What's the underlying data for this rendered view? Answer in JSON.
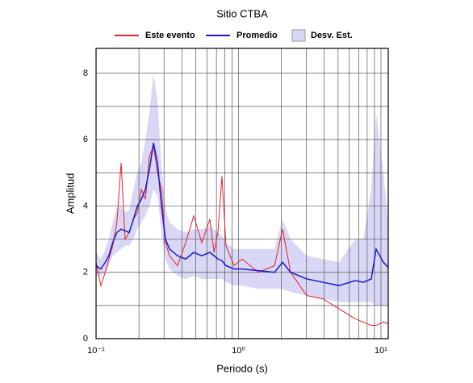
{
  "chart_data": {
    "type": "line",
    "title": "Sitio CTBA",
    "x_label": "Periodo (s)",
    "y_label": "Amplitud",
    "log_x": true,
    "grid": true,
    "xlim": [
      0.1,
      11.25
    ],
    "ylim": [
      0,
      8.75
    ],
    "xticks": [
      {
        "value": 0.1,
        "label": "10⁻¹"
      },
      {
        "value": 1,
        "label": "10⁰"
      },
      {
        "value": 10,
        "label": "10¹"
      }
    ],
    "xminor": [
      0.2,
      0.3,
      0.4,
      0.5,
      0.6,
      0.7,
      0.8,
      0.9,
      2,
      3,
      4,
      5,
      6,
      7,
      8,
      9
    ],
    "yticks": [
      0,
      2,
      4,
      6,
      8
    ],
    "yminor": [
      1,
      3,
      5,
      7
    ],
    "x": [
      0.1,
      0.108,
      0.116,
      0.123,
      0.131,
      0.14,
      0.15,
      0.16,
      0.171,
      0.183,
      0.195,
      0.208,
      0.222,
      0.237,
      0.253,
      0.27,
      0.288,
      0.307,
      0.328,
      0.373,
      0.426,
      0.485,
      0.552,
      0.63,
      0.673,
      0.717,
      0.765,
      0.817,
      0.931,
      1.06,
      1.38,
      1.79,
      2.04,
      2.32,
      3.01,
      3.91,
      5.08,
      6.59,
      7.51,
      8.55,
      9.25,
      10.4,
      11.25
    ],
    "series": [
      {
        "name": "Este evento",
        "color": "#e8202a",
        "values": [
          2.3,
          1.6,
          2.0,
          2.4,
          2.8,
          3.5,
          5.3,
          3.0,
          3.2,
          3.6,
          3.8,
          4.5,
          4.2,
          5.5,
          5.8,
          5.0,
          4.5,
          2.9,
          2.5,
          2.2,
          2.9,
          3.7,
          2.9,
          3.6,
          2.6,
          3.2,
          4.9,
          2.8,
          2.2,
          2.4,
          2.0,
          2.2,
          3.3,
          2.0,
          1.3,
          1.2,
          0.9,
          0.6,
          0.5,
          0.4,
          0.4,
          0.5,
          0.45
        ]
      },
      {
        "name": "Promedio",
        "color": "#1a1acc",
        "values": [
          2.2,
          2.1,
          2.3,
          2.5,
          2.9,
          3.2,
          3.3,
          3.25,
          3.2,
          3.6,
          4.0,
          4.2,
          4.5,
          5.1,
          5.9,
          5.3,
          4.0,
          3.0,
          2.7,
          2.5,
          2.4,
          2.6,
          2.5,
          2.6,
          2.5,
          2.4,
          2.35,
          2.2,
          2.1,
          2.1,
          2.05,
          2.0,
          2.3,
          2.0,
          1.8,
          1.7,
          1.6,
          1.75,
          1.7,
          1.8,
          2.7,
          2.3,
          2.15
        ]
      },
      {
        "name": "Desv. Est.",
        "color": "#d8d8f6",
        "band": true,
        "lower": [
          1.9,
          1.9,
          2.0,
          2.2,
          2.5,
          2.6,
          2.7,
          2.8,
          2.8,
          3.0,
          3.3,
          3.5,
          3.7,
          4.0,
          4.5,
          4.3,
          3.2,
          2.4,
          2.1,
          1.9,
          1.8,
          1.9,
          1.8,
          1.8,
          1.8,
          1.8,
          1.8,
          1.7,
          1.6,
          1.6,
          1.5,
          1.5,
          1.5,
          1.4,
          1.3,
          1.2,
          1.1,
          1.1,
          1.1,
          1.1,
          1.0,
          1.0,
          1.0
        ],
        "upper": [
          2.6,
          2.4,
          2.7,
          3.0,
          3.5,
          3.9,
          4.0,
          3.8,
          3.9,
          4.5,
          5.0,
          5.3,
          6.0,
          6.8,
          8.0,
          7.2,
          5.2,
          3.9,
          3.5,
          3.3,
          3.2,
          3.3,
          3.3,
          3.4,
          3.3,
          3.2,
          3.1,
          2.9,
          2.7,
          2.7,
          2.7,
          2.7,
          3.6,
          3.0,
          2.5,
          2.4,
          2.3,
          3.0,
          3.0,
          4.5,
          6.8,
          5.0,
          3.5
        ]
      }
    ]
  }
}
